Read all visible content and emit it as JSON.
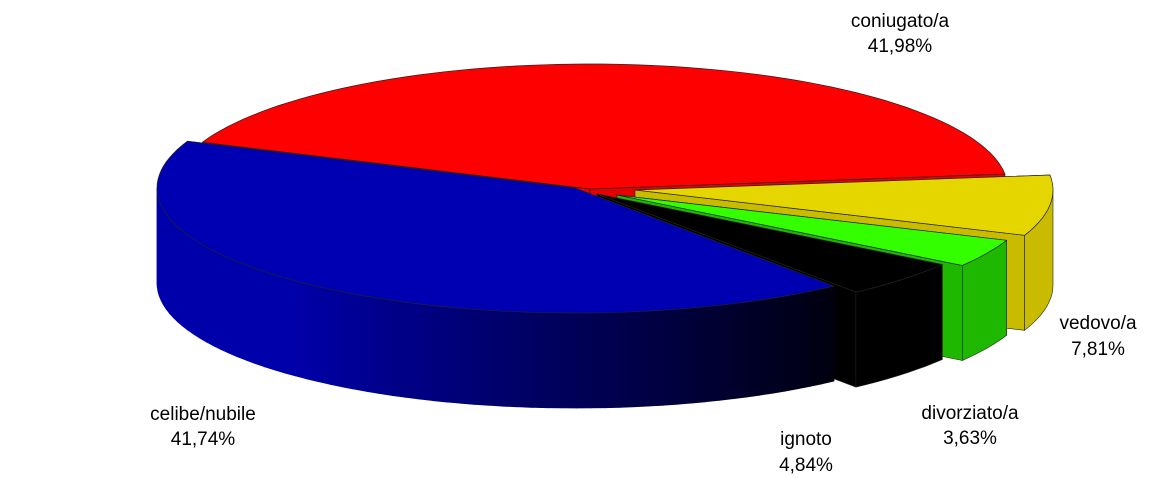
{
  "chart_data": {
    "type": "pie",
    "style": "3d-exploded",
    "legend": "none",
    "slices": [
      {
        "label": "coniugato/a",
        "value": 41.98,
        "display": "41,98%",
        "color": "#ff0000"
      },
      {
        "label": "vedovo/a",
        "value": 7.81,
        "display": "7,81%",
        "color": "#e6d600"
      },
      {
        "label": "divorziato/a",
        "value": 3.63,
        "display": "3,63%",
        "color": "#33ff00"
      },
      {
        "label": "ignoto",
        "value": 4.84,
        "display": "4,84%",
        "color": "#000000"
      },
      {
        "label": "celibe/nubile",
        "value": 41.74,
        "display": "41,74%",
        "color": "#0000b3"
      }
    ]
  }
}
